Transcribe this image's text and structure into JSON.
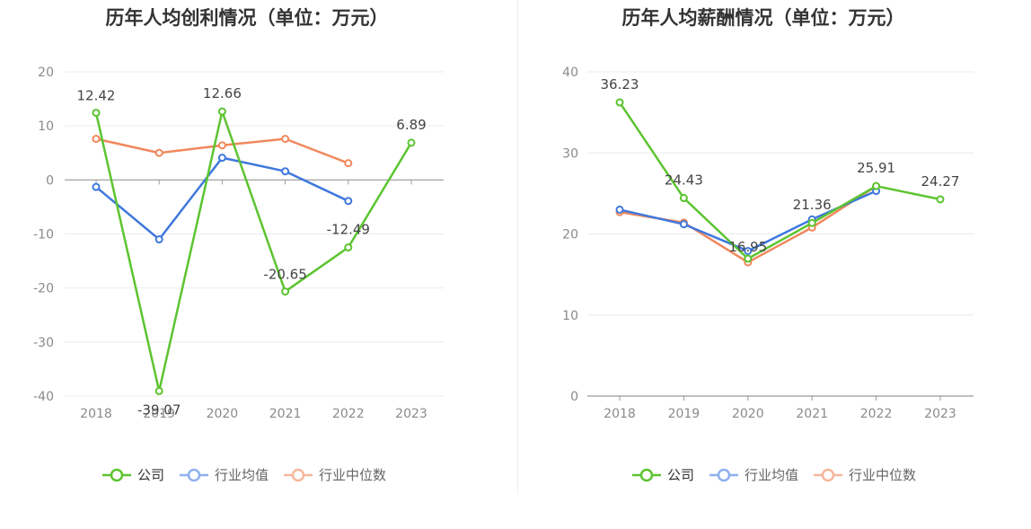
{
  "legend": {
    "company": "公司",
    "industry_avg": "行业均值",
    "industry_median": "行业中位数"
  },
  "colors": {
    "company": "#5cc430",
    "industry_avg": "#3f78dd",
    "industry_median": "#f0885c",
    "grid": "#e8ebf2",
    "axis": "#999999"
  },
  "chart_data": [
    {
      "type": "line",
      "title": "历年人均创利情况（单位：万元）",
      "categories": [
        "2018",
        "2019",
        "2020",
        "2021",
        "2022",
        "2023"
      ],
      "ylim": [
        -40,
        20
      ],
      "yticks": [
        20,
        10,
        0,
        -10,
        -20,
        -30,
        -40
      ],
      "series": [
        {
          "name": "公司",
          "key": "company",
          "values": [
            12.42,
            -39.07,
            12.66,
            -20.65,
            -12.49,
            6.89
          ],
          "labels": [
            "12.42",
            "-39.07",
            "12.66",
            "-20.65",
            "-12.49",
            "6.89"
          ]
        },
        {
          "name": "行业均值",
          "key": "industry_avg",
          "values": [
            -1.3,
            -11.0,
            4.1,
            1.6,
            -3.9,
            null
          ]
        },
        {
          "name": "行业中位数",
          "key": "industry_median",
          "values": [
            7.6,
            5.0,
            6.4,
            7.6,
            3.1,
            null
          ]
        }
      ]
    },
    {
      "type": "line",
      "title": "历年人均薪酬情况（单位：万元）",
      "categories": [
        "2018",
        "2019",
        "2020",
        "2021",
        "2022",
        "2023"
      ],
      "ylim": [
        0,
        40
      ],
      "yticks": [
        40,
        30,
        20,
        10,
        0
      ],
      "series": [
        {
          "name": "公司",
          "key": "company",
          "values": [
            36.23,
            24.43,
            16.95,
            21.36,
            25.91,
            24.27
          ],
          "labels": [
            "36.23",
            "24.43",
            "16.95",
            "21.36",
            "25.91",
            "24.27"
          ]
        },
        {
          "name": "行业均值",
          "key": "industry_avg",
          "values": [
            23.0,
            21.2,
            17.9,
            21.8,
            25.3,
            null
          ]
        },
        {
          "name": "行业中位数",
          "key": "industry_median",
          "values": [
            22.7,
            21.4,
            16.5,
            20.8,
            25.9,
            null
          ]
        }
      ]
    }
  ]
}
